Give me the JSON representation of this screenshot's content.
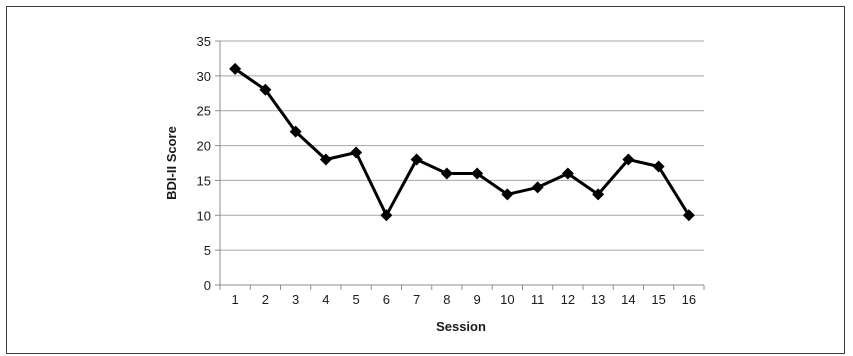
{
  "chart_data": {
    "type": "line",
    "title": "",
    "xlabel": "Session",
    "ylabel": "BDI-II Score",
    "x": [
      1,
      2,
      3,
      4,
      5,
      6,
      7,
      8,
      9,
      10,
      11,
      12,
      13,
      14,
      15,
      16
    ],
    "series": [
      {
        "values": [
          31,
          28,
          22,
          18,
          19,
          10,
          18,
          16,
          16,
          13,
          14,
          16,
          13,
          18,
          17,
          10
        ]
      }
    ],
    "ylim": [
      0,
      35
    ],
    "yticks": [
      0,
      5,
      10,
      15,
      20,
      25,
      30,
      35
    ],
    "grid": true,
    "legend": "none",
    "colors": {
      "line": "#000000",
      "grid": "#a6a6a6",
      "axis": "#8c8c8c"
    }
  }
}
